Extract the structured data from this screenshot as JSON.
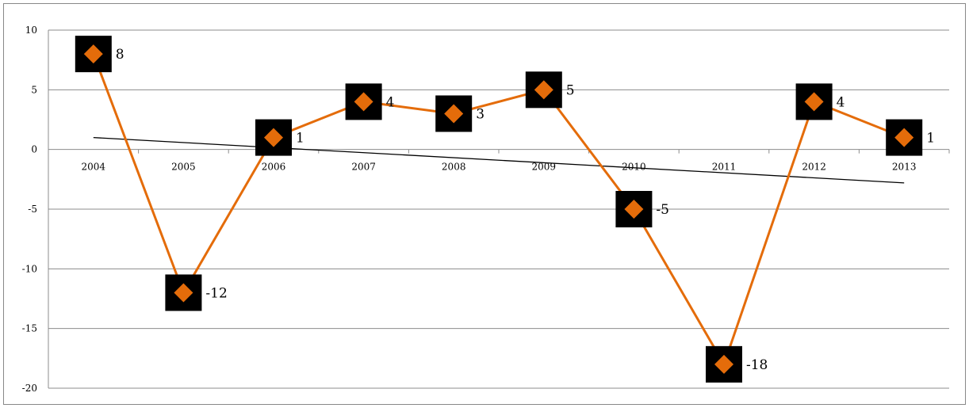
{
  "chart_data": {
    "type": "line",
    "title": "",
    "xlabel": "",
    "ylabel": "",
    "categories": [
      "2004",
      "2005",
      "2006",
      "2007",
      "2008",
      "2009",
      "2010",
      "2011",
      "2012",
      "2013"
    ],
    "series": [
      {
        "values": [
          8,
          -12,
          1,
          4,
          3,
          5,
          -5,
          -18,
          4,
          1
        ],
        "point_labels": [
          "8",
          "-12",
          "1",
          "4",
          "3",
          "5",
          "-5",
          "-18",
          "4",
          "1"
        ],
        "line_color": "#E46C0A",
        "marker": "diamond",
        "marker_color": "#E46C0A",
        "marker_background_color": "#000000"
      }
    ],
    "trendline": {
      "type": "linear",
      "color": "#000000",
      "start_value": 1.0,
      "end_value": -2.8
    },
    "yticks": [
      "10",
      "5",
      "0",
      "-5",
      "-10",
      "-15",
      "-20"
    ],
    "ylim": [
      -20,
      10
    ],
    "grid": true,
    "legend": "none"
  }
}
